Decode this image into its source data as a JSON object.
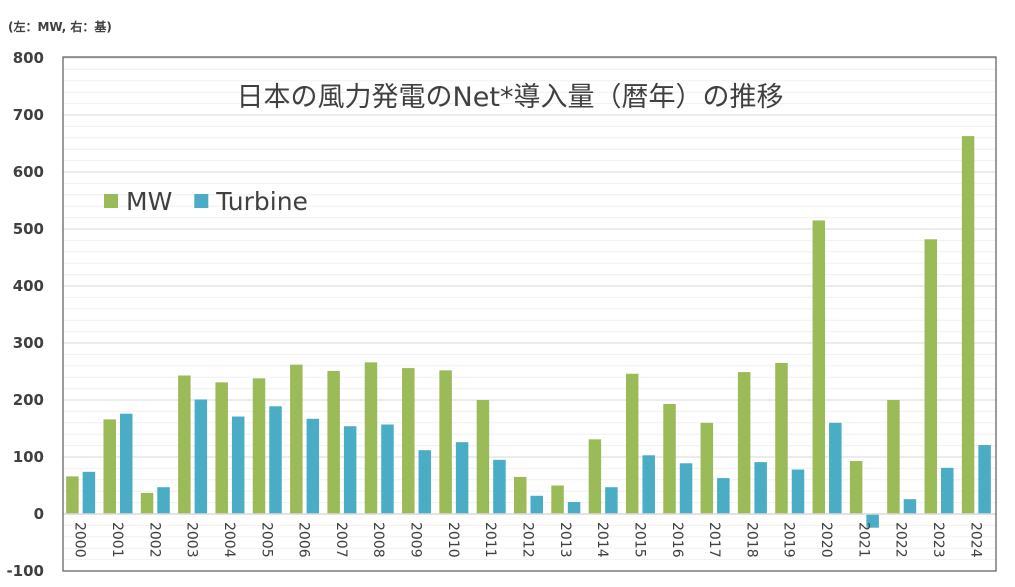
{
  "chart_data": {
    "type": "bar",
    "title": "日本の風力発電のNet*導入量（暦年）の推移",
    "unit_note": "(左：MW, 右：基)",
    "xlabel": "",
    "ylabel": "",
    "ylim": [
      -100,
      800
    ],
    "yticks": [
      -100,
      0,
      100,
      200,
      300,
      400,
      500,
      600,
      700,
      800
    ],
    "grid": true,
    "legend_position": "top-left",
    "categories": [
      "2000",
      "2001",
      "2002",
      "2003",
      "2004",
      "2005",
      "2006",
      "2007",
      "2008",
      "2009",
      "2010",
      "2011",
      "2012",
      "2013",
      "2014",
      "2015",
      "2016",
      "2017",
      "2018",
      "2019",
      "2020",
      "2021",
      "2022",
      "2023",
      "2024"
    ],
    "series": [
      {
        "name": "MW",
        "color": "#9bbb59",
        "values": [
          66,
          166,
          37,
          243,
          231,
          238,
          262,
          251,
          266,
          256,
          252,
          200,
          65,
          50,
          131,
          246,
          193,
          160,
          249,
          265,
          515,
          93,
          200,
          482,
          663
        ]
      },
      {
        "name": "Turbine",
        "color": "#4bacc6",
        "values": [
          74,
          176,
          47,
          201,
          171,
          189,
          167,
          154,
          157,
          112,
          126,
          95,
          32,
          21,
          47,
          103,
          89,
          63,
          91,
          78,
          160,
          -24,
          26,
          81,
          121
        ]
      }
    ]
  }
}
